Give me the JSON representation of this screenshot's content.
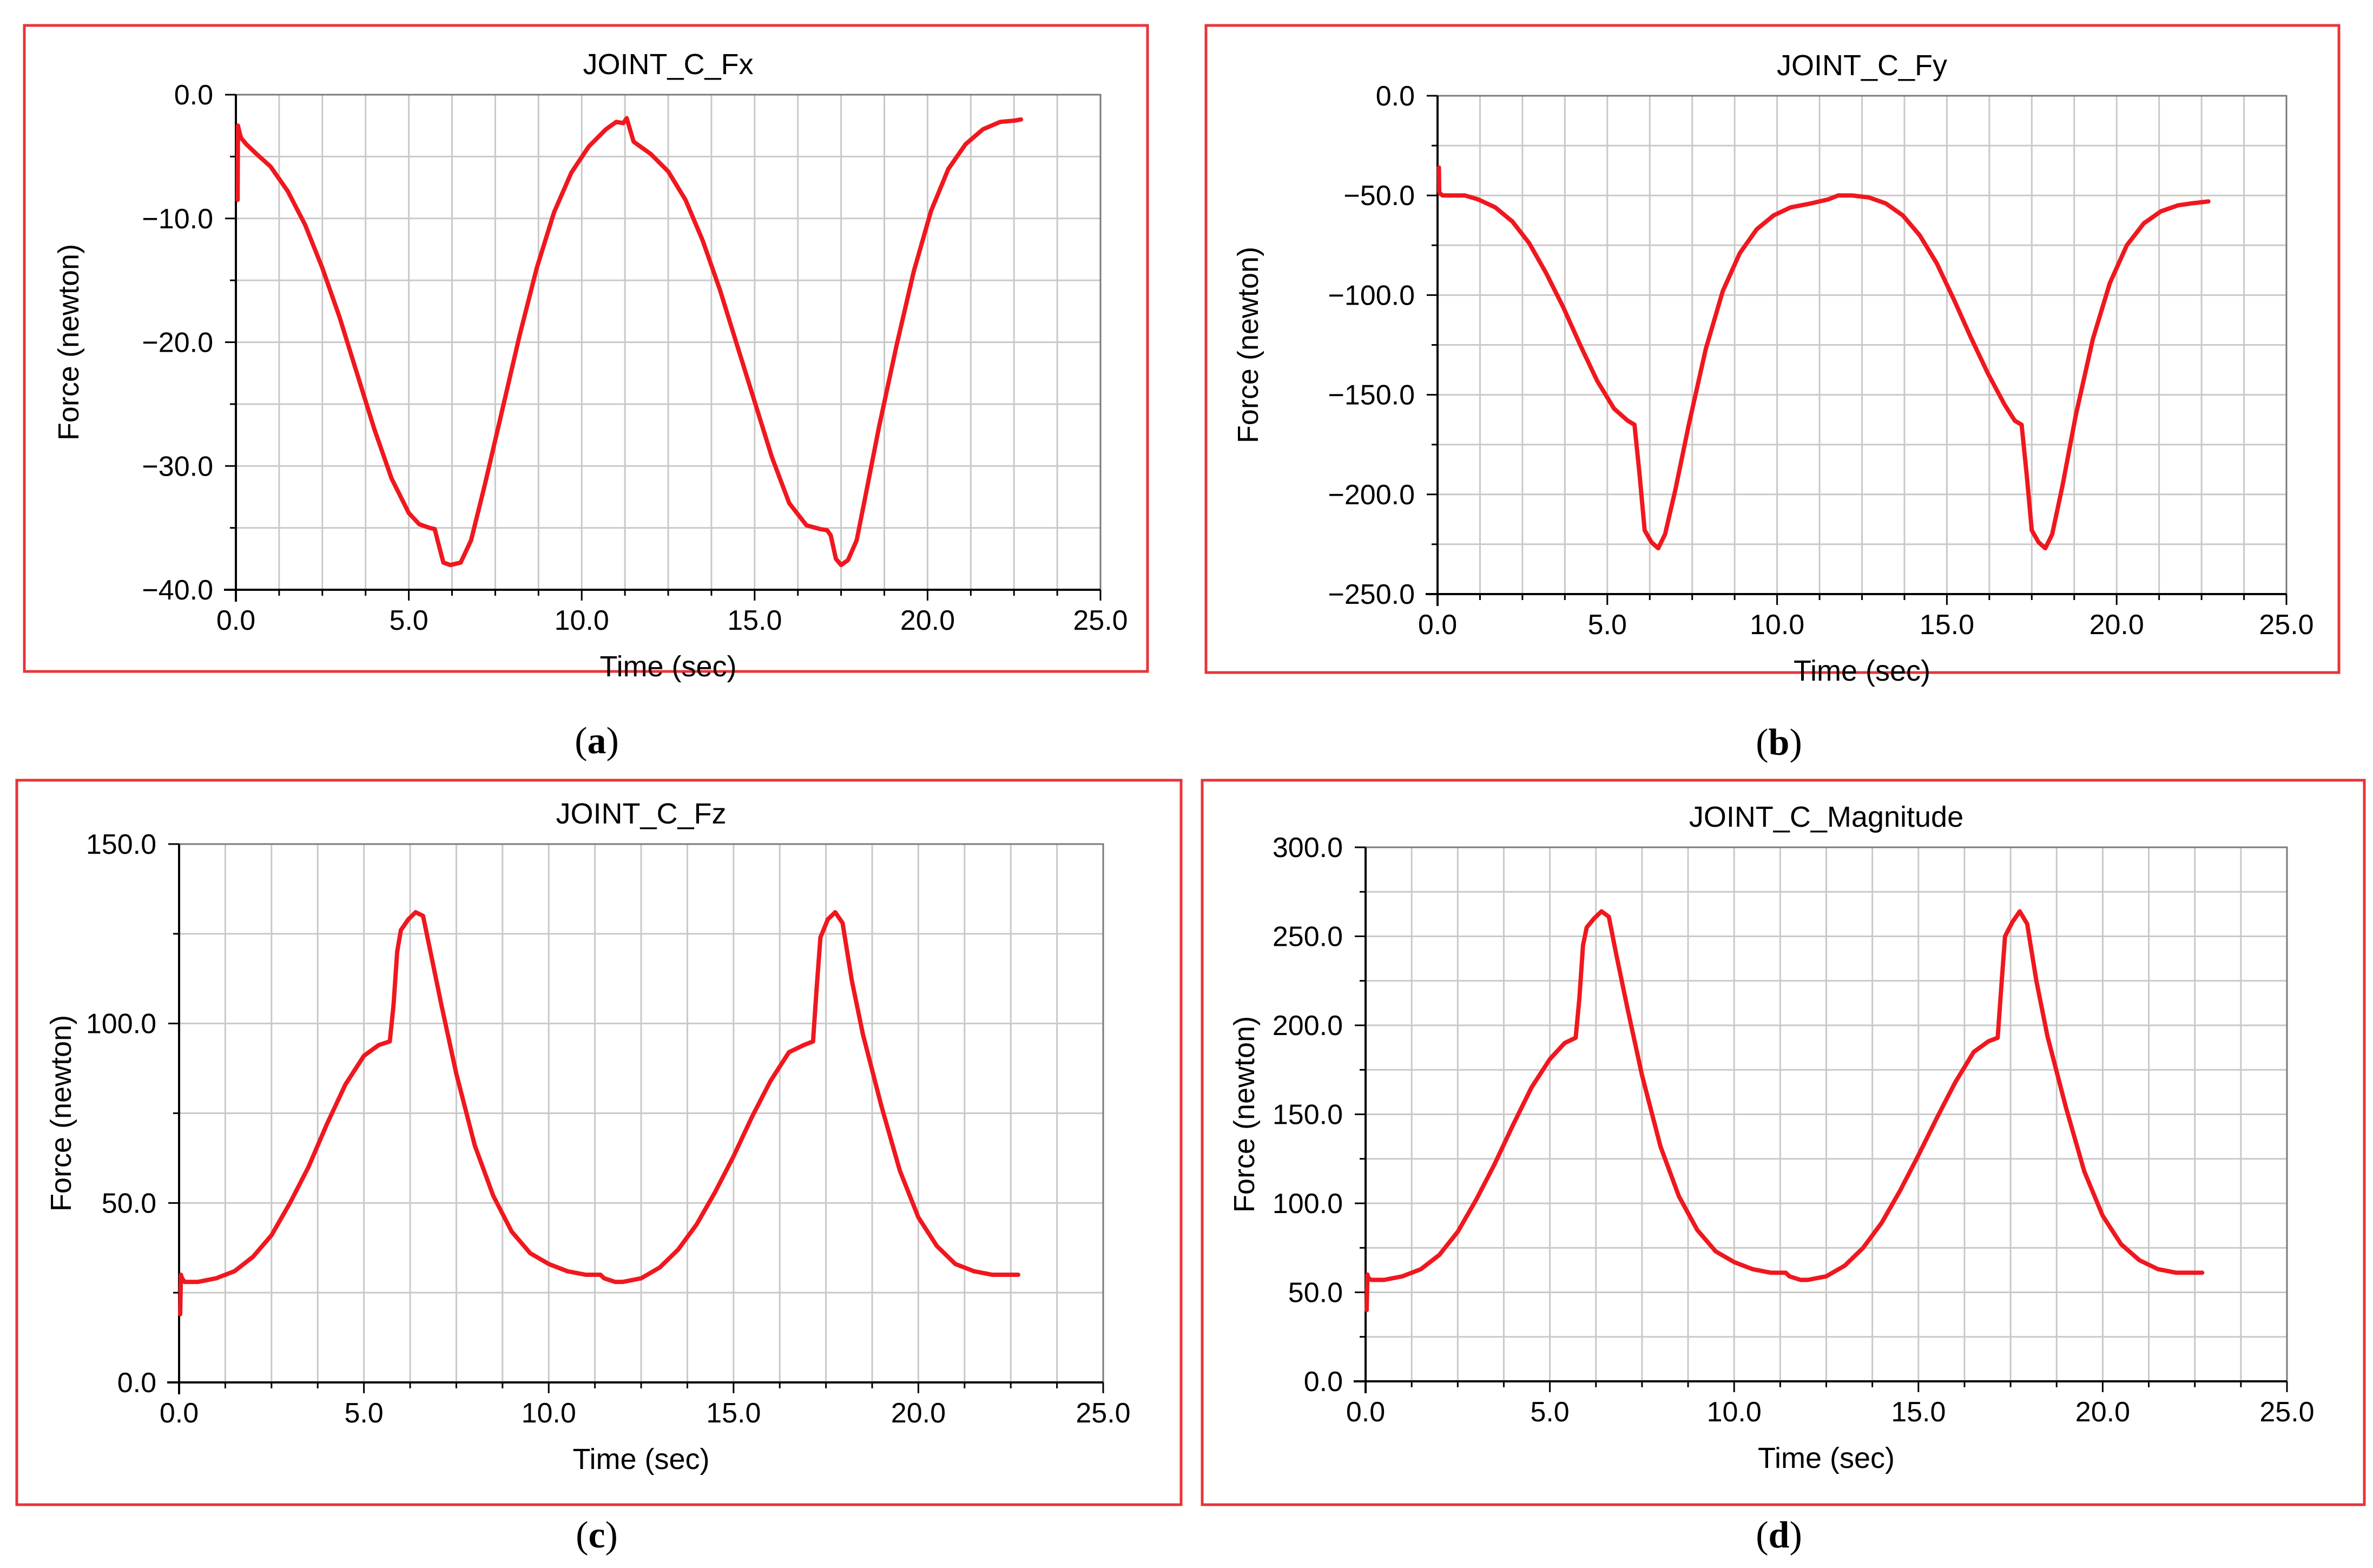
{
  "colors": {
    "frame": "#e8343a",
    "line": "#f0171e",
    "grid": "#c9c9c9",
    "axis": "#000000"
  },
  "chart_data": [
    {
      "type": "line",
      "title": "JOINT_C_Fx",
      "xlabel": "Time (sec)",
      "ylabel": "Force (newton)",
      "xlim": [
        0.0,
        25.0
      ],
      "ylim": [
        -40.0,
        0.0
      ],
      "xticks": [
        "0.0",
        "5.0",
        "10.0",
        "15.0",
        "20.0",
        "25.0"
      ],
      "yticks": [
        "0.0",
        "−10.0",
        "−20.0",
        "−30.0",
        "−40.0"
      ],
      "caption_open": "(",
      "caption_letter": "a",
      "caption_close": ")",
      "series": [
        {
          "name": "JOINT_C_Fx",
          "x": [
            0.05,
            0.06,
            0.1,
            0.15,
            0.3,
            0.6,
            1.0,
            1.5,
            2.0,
            2.5,
            3.0,
            3.5,
            4.0,
            4.5,
            5.0,
            5.3,
            5.6,
            5.75,
            5.85,
            6.0,
            6.2,
            6.5,
            6.8,
            7.2,
            7.7,
            8.2,
            8.7,
            9.2,
            9.7,
            10.2,
            10.7,
            11.0,
            11.2,
            11.3,
            11.5,
            12.0,
            12.5,
            13.0,
            13.5,
            14.0,
            14.5,
            15.0,
            15.5,
            16.0,
            16.5,
            16.9,
            17.1,
            17.2,
            17.35,
            17.5,
            17.7,
            17.95,
            18.2,
            18.6,
            19.1,
            19.6,
            20.1,
            20.6,
            21.1,
            21.6,
            22.1,
            22.5,
            22.7
          ],
          "y": [
            -8.5,
            -2.5,
            -3.0,
            -3.5,
            -4.0,
            -4.8,
            -5.8,
            -7.8,
            -10.5,
            -14.0,
            -18.0,
            -22.5,
            -27.0,
            -31.0,
            -33.8,
            -34.7,
            -35.0,
            -35.1,
            -36.2,
            -37.8,
            -38.0,
            -37.8,
            -36.0,
            -31.5,
            -25.5,
            -19.5,
            -14.0,
            -9.5,
            -6.3,
            -4.2,
            -2.8,
            -2.2,
            -2.3,
            -1.9,
            -3.8,
            -4.8,
            -6.2,
            -8.5,
            -11.8,
            -15.8,
            -20.3,
            -24.8,
            -29.3,
            -33.0,
            -34.8,
            -35.1,
            -35.2,
            -35.6,
            -37.5,
            -38.0,
            -37.6,
            -36.0,
            -32.5,
            -26.8,
            -20.3,
            -14.3,
            -9.4,
            -6.0,
            -4.0,
            -2.8,
            -2.2,
            -2.1,
            -2.0
          ]
        }
      ]
    },
    {
      "type": "line",
      "title": "JOINT_C_Fy",
      "xlabel": "Time (sec)",
      "ylabel": "Force (newton)",
      "xlim": [
        0.0,
        25.0
      ],
      "ylim": [
        -250.0,
        0.0
      ],
      "xticks": [
        "0.0",
        "5.0",
        "10.0",
        "15.0",
        "20.0",
        "25.0"
      ],
      "yticks": [
        "0.0",
        "−50.0",
        "−100.0",
        "−150.0",
        "−200.0",
        "−250.0"
      ],
      "caption_open": "(",
      "caption_letter": "b",
      "caption_close": ")",
      "series": [
        {
          "name": "JOINT_C_Fy",
          "x": [
            0.04,
            0.05,
            0.07,
            0.15,
            0.4,
            0.8,
            1.2,
            1.7,
            2.2,
            2.7,
            3.2,
            3.7,
            4.2,
            4.7,
            5.2,
            5.6,
            5.8,
            5.95,
            6.1,
            6.3,
            6.5,
            6.7,
            7.0,
            7.4,
            7.9,
            8.4,
            8.9,
            9.4,
            9.9,
            10.4,
            11.0,
            11.5,
            11.8,
            12.2,
            12.7,
            13.2,
            13.7,
            14.2,
            14.7,
            15.2,
            15.7,
            16.2,
            16.7,
            17.0,
            17.2,
            17.35,
            17.5,
            17.7,
            17.9,
            18.1,
            18.4,
            18.8,
            19.3,
            19.8,
            20.3,
            20.8,
            21.3,
            21.8,
            22.2,
            22.7
          ],
          "y": [
            -36,
            -48,
            -49,
            -50,
            -50,
            -50,
            -52,
            -56,
            -63,
            -74,
            -89,
            -106,
            -125,
            -143,
            -157,
            -163,
            -165,
            -190,
            -218,
            -224,
            -227,
            -220,
            -198,
            -165,
            -127,
            -98,
            -79,
            -67,
            -60,
            -56,
            -54,
            -52,
            -50,
            -50,
            -51,
            -54,
            -60,
            -70,
            -84,
            -102,
            -121,
            -139,
            -155,
            -163,
            -165,
            -190,
            -218,
            -224,
            -227,
            -220,
            -196,
            -160,
            -122,
            -94,
            -75,
            -64,
            -58,
            -55,
            -54,
            -53
          ]
        }
      ]
    },
    {
      "type": "line",
      "title": "JOINT_C_Fz",
      "xlabel": "Time (sec)",
      "ylabel": "Force (newton)",
      "xlim": [
        0.0,
        25.0
      ],
      "ylim": [
        0.0,
        150.0
      ],
      "xticks": [
        "0.0",
        "5.0",
        "10.0",
        "15.0",
        "20.0",
        "25.0"
      ],
      "yticks": [
        "150.0",
        "100.0",
        "50.0",
        "0.0"
      ],
      "caption_open": "(",
      "caption_letter": "c",
      "caption_close": ")",
      "series": [
        {
          "name": "JOINT_C_Fz",
          "x": [
            0.03,
            0.05,
            0.08,
            0.15,
            0.5,
            1.0,
            1.5,
            2.0,
            2.5,
            3.0,
            3.5,
            4.0,
            4.5,
            5.0,
            5.4,
            5.7,
            5.8,
            5.9,
            6.0,
            6.2,
            6.4,
            6.6,
            6.8,
            7.1,
            7.5,
            8.0,
            8.5,
            9.0,
            9.5,
            10.0,
            10.5,
            11.0,
            11.4,
            11.5,
            11.8,
            12.0,
            12.5,
            13.0,
            13.5,
            14.0,
            14.5,
            15.0,
            15.5,
            16.0,
            16.5,
            16.9,
            17.15,
            17.25,
            17.35,
            17.55,
            17.75,
            17.95,
            18.2,
            18.5,
            19.0,
            19.5,
            20.0,
            20.5,
            21.0,
            21.5,
            22.0,
            22.7
          ],
          "y": [
            19,
            30,
            29,
            28,
            28,
            29,
            31,
            35,
            41,
            50,
            60,
            72,
            83,
            91,
            94,
            95,
            105,
            120,
            126,
            129,
            131,
            130,
            120,
            105,
            86,
            66,
            52,
            42,
            36,
            33,
            31,
            30,
            30,
            29,
            28,
            28,
            29,
            32,
            37,
            44,
            53,
            63,
            74,
            84,
            92,
            94,
            95,
            110,
            124,
            129,
            131,
            128,
            112,
            97,
            77,
            59,
            46,
            38,
            33,
            31,
            30,
            30
          ]
        }
      ]
    },
    {
      "type": "line",
      "title": "JOINT_C_Magnitude",
      "xlabel": "Time (sec)",
      "ylabel": "Force (newton)",
      "xlim": [
        0.0,
        25.0
      ],
      "ylim": [
        0.0,
        300.0
      ],
      "xticks": [
        "0.0",
        "5.0",
        "10.0",
        "15.0",
        "20.0",
        "25.0"
      ],
      "yticks": [
        "300.0",
        "250.0",
        "200.0",
        "150.0",
        "100.0",
        "50.0",
        "0.0"
      ],
      "caption_open": "(",
      "caption_letter": "d",
      "caption_close": ")",
      "series": [
        {
          "name": "JOINT_C_Magnitude",
          "x": [
            0.03,
            0.05,
            0.08,
            0.15,
            0.5,
            1.0,
            1.5,
            2.0,
            2.5,
            3.0,
            3.5,
            4.0,
            4.5,
            5.0,
            5.4,
            5.7,
            5.8,
            5.9,
            6.0,
            6.2,
            6.4,
            6.6,
            6.8,
            7.1,
            7.5,
            8.0,
            8.5,
            9.0,
            9.5,
            10.0,
            10.5,
            11.0,
            11.4,
            11.5,
            11.8,
            12.0,
            12.5,
            13.0,
            13.5,
            14.0,
            14.5,
            15.0,
            15.5,
            16.0,
            16.5,
            16.9,
            17.15,
            17.25,
            17.35,
            17.55,
            17.75,
            17.95,
            18.2,
            18.5,
            19.0,
            19.5,
            20.0,
            20.5,
            21.0,
            21.5,
            22.0,
            22.7
          ],
          "y": [
            40,
            60,
            58,
            57,
            57,
            59,
            63,
            71,
            84,
            102,
            122,
            144,
            165,
            181,
            190,
            193,
            215,
            245,
            255,
            260,
            264,
            261,
            240,
            210,
            172,
            132,
            104,
            85,
            73,
            67,
            63,
            61,
            61,
            59,
            57,
            57,
            59,
            65,
            75,
            89,
            107,
            127,
            148,
            168,
            185,
            191,
            193,
            222,
            250,
            258,
            264,
            257,
            225,
            194,
            154,
            118,
            93,
            77,
            68,
            63,
            61,
            61
          ]
        }
      ]
    }
  ]
}
